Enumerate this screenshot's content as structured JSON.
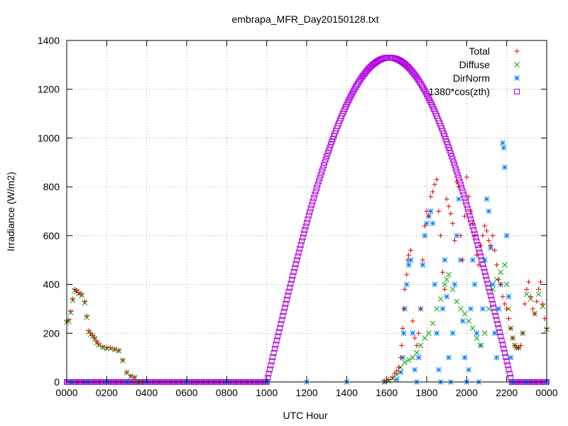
{
  "chart_data": {
    "type": "scatter",
    "title": "embrapa_MFR_Day20150128.txt",
    "xlabel": "UTC Hour",
    "ylabel": "Irradiance (W/m2)",
    "xlim": [
      0,
      24
    ],
    "ylim": [
      0,
      1400
    ],
    "x_tick_labels": [
      "0000",
      "0200",
      "0400",
      "0600",
      "0800",
      "1000",
      "1200",
      "1400",
      "1600",
      "1800",
      "2000",
      "2200",
      "0000"
    ],
    "y_tick_labels": [
      "0",
      "200",
      "400",
      "600",
      "800",
      "1000",
      "1200",
      "1400"
    ],
    "grid": true,
    "legend_position": "top-right",
    "series": [
      {
        "name": "Total",
        "marker": "plus",
        "color": "#e00000",
        "points": [
          [
            0.0,
            250
          ],
          [
            0.1,
            255
          ],
          [
            0.2,
            290
          ],
          [
            0.3,
            340
          ],
          [
            0.4,
            380
          ],
          [
            0.5,
            375
          ],
          [
            0.6,
            365
          ],
          [
            0.75,
            360
          ],
          [
            0.9,
            330
          ],
          [
            1.0,
            270
          ],
          [
            1.1,
            210
          ],
          [
            1.2,
            200
          ],
          [
            1.3,
            190
          ],
          [
            1.4,
            180
          ],
          [
            1.5,
            165
          ],
          [
            1.6,
            155
          ],
          [
            1.8,
            145
          ],
          [
            2.0,
            140
          ],
          [
            2.2,
            140
          ],
          [
            2.4,
            135
          ],
          [
            2.6,
            130
          ],
          [
            2.8,
            90
          ],
          [
            3.0,
            40
          ],
          [
            3.2,
            25
          ],
          [
            3.4,
            20
          ],
          [
            3.6,
            0
          ],
          [
            3.8,
            0
          ],
          [
            15.9,
            5
          ],
          [
            16.1,
            10
          ],
          [
            16.3,
            20
          ],
          [
            16.4,
            35
          ],
          [
            16.5,
            45
          ],
          [
            16.6,
            60
          ],
          [
            16.7,
            100
          ],
          [
            16.75,
            150
          ],
          [
            16.8,
            220
          ],
          [
            16.85,
            300
          ],
          [
            16.9,
            380
          ],
          [
            17.0,
            440
          ],
          [
            17.05,
            500
          ],
          [
            17.1,
            520
          ],
          [
            17.2,
            540
          ],
          [
            17.3,
            250
          ],
          [
            17.4,
            180
          ],
          [
            17.5,
            150
          ],
          [
            17.6,
            200
          ],
          [
            17.7,
            300
          ],
          [
            17.8,
            500
          ],
          [
            17.9,
            640
          ],
          [
            18.0,
            700
          ],
          [
            18.1,
            680
          ],
          [
            18.2,
            760
          ],
          [
            18.3,
            780
          ],
          [
            18.4,
            810
          ],
          [
            18.5,
            830
          ],
          [
            18.6,
            700
          ],
          [
            18.7,
            600
          ],
          [
            18.8,
            450
          ],
          [
            18.9,
            380
          ],
          [
            19.0,
            750
          ],
          [
            19.1,
            720
          ],
          [
            19.2,
            690
          ],
          [
            19.3,
            650
          ],
          [
            19.4,
            580
          ],
          [
            19.5,
            820
          ],
          [
            19.6,
            800
          ],
          [
            19.7,
            600
          ],
          [
            19.8,
            500
          ],
          [
            19.9,
            680
          ],
          [
            20.0,
            840
          ],
          [
            20.1,
            760
          ],
          [
            20.2,
            700
          ],
          [
            20.3,
            650
          ],
          [
            20.4,
            600
          ],
          [
            20.5,
            520
          ],
          [
            20.6,
            480
          ],
          [
            20.7,
            560
          ],
          [
            20.8,
            600
          ],
          [
            20.9,
            640
          ],
          [
            21.0,
            620
          ],
          [
            21.1,
            580
          ],
          [
            21.2,
            560
          ],
          [
            21.3,
            600
          ],
          [
            21.4,
            540
          ],
          [
            21.5,
            480
          ],
          [
            21.6,
            420
          ],
          [
            21.7,
            400
          ],
          [
            21.8,
            350
          ],
          [
            21.9,
            320
          ],
          [
            22.0,
            300
          ],
          [
            22.1,
            260
          ],
          [
            22.2,
            220
          ],
          [
            22.3,
            180
          ],
          [
            22.4,
            150
          ],
          [
            22.5,
            140
          ],
          [
            22.6,
            140
          ],
          [
            22.7,
            150
          ],
          [
            22.8,
            200
          ],
          [
            22.9,
            320
          ],
          [
            23.0,
            380
          ],
          [
            23.1,
            410
          ],
          [
            23.2,
            350
          ],
          [
            23.3,
            300
          ],
          [
            23.4,
            280
          ],
          [
            23.5,
            330
          ],
          [
            23.6,
            380
          ],
          [
            23.7,
            410
          ],
          [
            23.8,
            320
          ],
          [
            23.9,
            260
          ],
          [
            24.0,
            220
          ]
        ]
      },
      {
        "name": "Diffuse",
        "marker": "cross",
        "color": "#00a000",
        "points": [
          [
            0.0,
            245
          ],
          [
            0.1,
            250
          ],
          [
            0.2,
            285
          ],
          [
            0.3,
            335
          ],
          [
            0.4,
            375
          ],
          [
            0.5,
            370
          ],
          [
            0.6,
            362
          ],
          [
            0.75,
            355
          ],
          [
            0.9,
            325
          ],
          [
            1.0,
            265
          ],
          [
            1.1,
            205
          ],
          [
            1.2,
            195
          ],
          [
            1.3,
            188
          ],
          [
            1.4,
            178
          ],
          [
            1.5,
            162
          ],
          [
            1.6,
            152
          ],
          [
            1.8,
            142
          ],
          [
            2.0,
            138
          ],
          [
            2.2,
            137
          ],
          [
            2.4,
            133
          ],
          [
            2.6,
            128
          ],
          [
            2.8,
            88
          ],
          [
            3.0,
            38
          ],
          [
            3.2,
            23
          ],
          [
            3.4,
            18
          ],
          [
            3.6,
            0
          ],
          [
            15.9,
            2
          ],
          [
            16.1,
            5
          ],
          [
            16.3,
            15
          ],
          [
            16.5,
            30
          ],
          [
            16.7,
            60
          ],
          [
            16.9,
            80
          ],
          [
            17.1,
            90
          ],
          [
            17.3,
            100
          ],
          [
            17.5,
            120
          ],
          [
            17.7,
            150
          ],
          [
            17.9,
            180
          ],
          [
            18.1,
            200
          ],
          [
            18.3,
            240
          ],
          [
            18.5,
            300
          ],
          [
            18.7,
            340
          ],
          [
            18.9,
            400
          ],
          [
            19.0,
            420
          ],
          [
            19.1,
            440
          ],
          [
            19.3,
            380
          ],
          [
            19.5,
            330
          ],
          [
            19.7,
            300
          ],
          [
            19.9,
            280
          ],
          [
            20.1,
            250
          ],
          [
            20.3,
            220
          ],
          [
            20.5,
            180
          ],
          [
            20.7,
            150
          ],
          [
            20.9,
            200
          ],
          [
            21.1,
            300
          ],
          [
            21.3,
            380
          ],
          [
            21.5,
            420
          ],
          [
            21.7,
            450
          ],
          [
            21.9,
            480
          ],
          [
            22.0,
            400
          ],
          [
            22.1,
            300
          ],
          [
            22.2,
            220
          ],
          [
            22.3,
            180
          ],
          [
            22.4,
            150
          ],
          [
            22.5,
            140
          ],
          [
            22.6,
            140
          ],
          [
            22.8,
            200
          ],
          [
            23.0,
            360
          ],
          [
            23.2,
            340
          ],
          [
            23.4,
            280
          ],
          [
            23.6,
            360
          ],
          [
            23.8,
            310
          ],
          [
            24.0,
            215
          ]
        ]
      },
      {
        "name": "DirNorm",
        "marker": "star",
        "color": "#0080ff",
        "points": [
          [
            0.2,
            0
          ],
          [
            1.0,
            0
          ],
          [
            2.0,
            0
          ],
          [
            3.0,
            0
          ],
          [
            4.0,
            0
          ],
          [
            6.0,
            0
          ],
          [
            8.0,
            0
          ],
          [
            10.0,
            0
          ],
          [
            12.0,
            0
          ],
          [
            14.0,
            0
          ],
          [
            15.9,
            0
          ],
          [
            16.5,
            10
          ],
          [
            16.7,
            40
          ],
          [
            16.8,
            100
          ],
          [
            16.85,
            200
          ],
          [
            16.9,
            300
          ],
          [
            17.0,
            400
          ],
          [
            17.1,
            480
          ],
          [
            17.2,
            500
          ],
          [
            17.3,
            200
          ],
          [
            17.4,
            50
          ],
          [
            17.5,
            0
          ],
          [
            17.6,
            100
          ],
          [
            17.7,
            300
          ],
          [
            17.8,
            480
          ],
          [
            17.9,
            600
          ],
          [
            18.0,
            650
          ],
          [
            18.1,
            680
          ],
          [
            18.2,
            700
          ],
          [
            18.3,
            650
          ],
          [
            18.4,
            400
          ],
          [
            18.5,
            200
          ],
          [
            18.6,
            50
          ],
          [
            18.7,
            0
          ],
          [
            18.8,
            300
          ],
          [
            18.9,
            500
          ],
          [
            19.0,
            350
          ],
          [
            19.1,
            100
          ],
          [
            19.2,
            0
          ],
          [
            19.3,
            200
          ],
          [
            19.4,
            400
          ],
          [
            19.5,
            600
          ],
          [
            19.6,
            750
          ],
          [
            19.7,
            500
          ],
          [
            19.8,
            250
          ],
          [
            19.9,
            100
          ],
          [
            20.0,
            0
          ],
          [
            20.1,
            50
          ],
          [
            20.2,
            300
          ],
          [
            20.3,
            500
          ],
          [
            20.4,
            400
          ],
          [
            20.5,
            200
          ],
          [
            20.6,
            0
          ],
          [
            20.7,
            150
          ],
          [
            20.8,
            300
          ],
          [
            20.9,
            500
          ],
          [
            21.0,
            750
          ],
          [
            21.1,
            700
          ],
          [
            21.2,
            550
          ],
          [
            21.3,
            400
          ],
          [
            21.4,
            200
          ],
          [
            21.5,
            100
          ],
          [
            21.6,
            300
          ],
          [
            21.7,
            400
          ],
          [
            21.8,
            980
          ],
          [
            21.85,
            960
          ],
          [
            21.9,
            880
          ],
          [
            22.0,
            600
          ],
          [
            22.1,
            350
          ],
          [
            22.2,
            100
          ],
          [
            22.3,
            0
          ],
          [
            23.0,
            0
          ],
          [
            24.0,
            0
          ]
        ]
      },
      {
        "name": "1380*cos(zth)",
        "marker": "square",
        "color": "#b000e0",
        "curve": {
          "zero_before": 10.0,
          "zero_after": 22.25,
          "peak_x": 16.125,
          "peak_y": 1330
        }
      }
    ]
  }
}
